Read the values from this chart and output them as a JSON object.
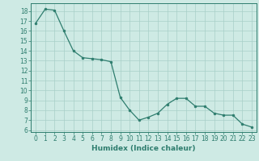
{
  "x": [
    0,
    1,
    2,
    3,
    4,
    5,
    6,
    7,
    8,
    9,
    10,
    11,
    12,
    13,
    14,
    15,
    16,
    17,
    18,
    19,
    20,
    21,
    22,
    23
  ],
  "y": [
    16.8,
    18.2,
    18.1,
    16.0,
    14.0,
    13.3,
    13.2,
    13.1,
    12.9,
    9.3,
    8.0,
    7.0,
    7.3,
    7.7,
    8.6,
    9.2,
    9.2,
    8.4,
    8.4,
    7.7,
    7.5,
    7.5,
    6.6,
    6.3
  ],
  "line_color": "#2e7d6e",
  "marker_color": "#2e7d6e",
  "bg_color": "#ceeae4",
  "grid_color": "#a8cfc8",
  "xlabel": "Humidex (Indice chaleur)",
  "xlim": [
    -0.5,
    23.5
  ],
  "ylim": [
    5.8,
    18.8
  ],
  "yticks": [
    6,
    7,
    8,
    9,
    10,
    11,
    12,
    13,
    14,
    15,
    16,
    17,
    18
  ],
  "xticks": [
    0,
    1,
    2,
    3,
    4,
    5,
    6,
    7,
    8,
    9,
    10,
    11,
    12,
    13,
    14,
    15,
    16,
    17,
    18,
    19,
    20,
    21,
    22,
    23
  ],
  "label_fontsize": 6.5,
  "tick_fontsize": 5.5
}
